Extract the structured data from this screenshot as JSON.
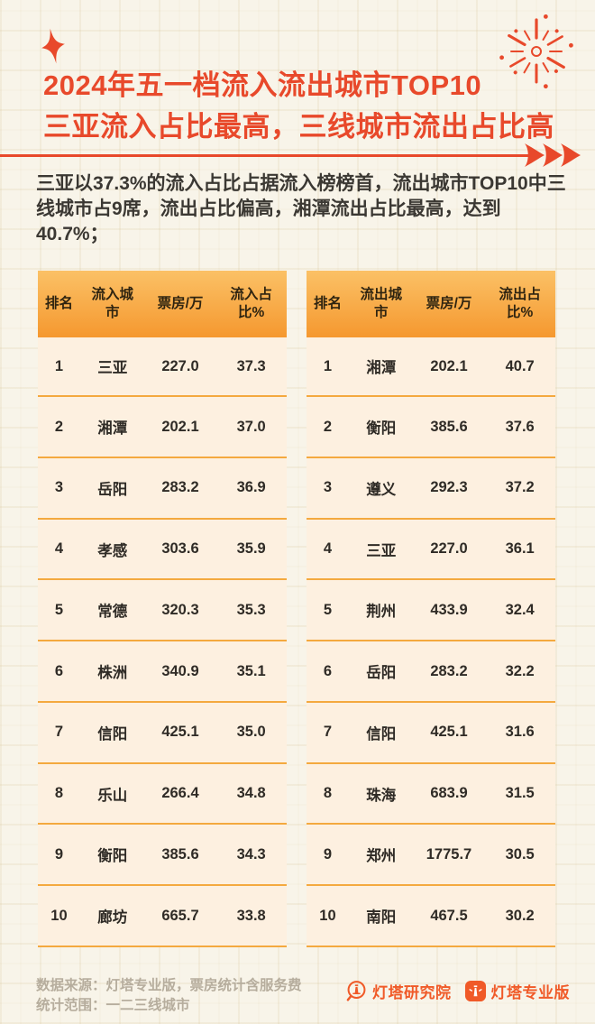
{
  "page": {
    "title_line1": "2024年五一档流入流出城市TOP10",
    "title_line2": "三亚流入占比最高，三线城市流出占比高",
    "summary": "三亚以37.3%的流入占比占据流入榜榜首，流出城市TOP10中三线城市占9席，流出占比偏高，湘潭流出占比最高，达到40.7%；"
  },
  "chart_data": [
    {
      "type": "table",
      "title": "流入城市TOP10",
      "columns": [
        "排名",
        "流入城市",
        "票房/万",
        "流入占比%"
      ],
      "rows": [
        [
          "1",
          "三亚",
          "227.0",
          "37.3"
        ],
        [
          "2",
          "湘潭",
          "202.1",
          "37.0"
        ],
        [
          "3",
          "岳阳",
          "283.2",
          "36.9"
        ],
        [
          "4",
          "孝感",
          "303.6",
          "35.9"
        ],
        [
          "5",
          "常德",
          "320.3",
          "35.3"
        ],
        [
          "6",
          "株洲",
          "340.9",
          "35.1"
        ],
        [
          "7",
          "信阳",
          "425.1",
          "35.0"
        ],
        [
          "8",
          "乐山",
          "266.4",
          "34.8"
        ],
        [
          "9",
          "衡阳",
          "385.6",
          "34.3"
        ],
        [
          "10",
          "廊坊",
          "665.7",
          "33.8"
        ]
      ]
    },
    {
      "type": "table",
      "title": "流出城市TOP10",
      "columns": [
        "排名",
        "流出城市",
        "票房/万",
        "流出占比%"
      ],
      "rows": [
        [
          "1",
          "湘潭",
          "202.1",
          "40.7"
        ],
        [
          "2",
          "衡阳",
          "385.6",
          "37.6"
        ],
        [
          "3",
          "遵义",
          "292.3",
          "37.2"
        ],
        [
          "4",
          "三亚",
          "227.0",
          "36.1"
        ],
        [
          "5",
          "荆州",
          "433.9",
          "32.4"
        ],
        [
          "6",
          "岳阳",
          "283.2",
          "32.2"
        ],
        [
          "7",
          "信阳",
          "425.1",
          "31.6"
        ],
        [
          "8",
          "珠海",
          "683.9",
          "31.5"
        ],
        [
          "9",
          "郑州",
          "1775.7",
          "30.5"
        ],
        [
          "10",
          "南阳",
          "467.5",
          "30.2"
        ]
      ]
    }
  ],
  "footer": {
    "source_line1": "数据来源：灯塔专业版，票房统计含服务费",
    "source_line2": "统计范围：一二三线城市",
    "logo1_label": "灯塔研究院",
    "logo2_label": "灯塔专业版"
  },
  "icons": {
    "sparkle": "four-point-star",
    "fireworks": "firework-burst",
    "arrows": "triple-forward-arrows",
    "logo1": "lighthouse-magnifier",
    "logo2": "lighthouse-app-tile"
  },
  "colors": {
    "accent": "#e8492b",
    "header_gradient_top": "#fbc166",
    "header_gradient_bottom": "#f5982f",
    "table_body_bg": "#fdf0e0",
    "row_divider": "#f4a93f",
    "page_bg": "#f8f4e9",
    "text_dark": "#3b3833",
    "footer_text": "#b6ad9d",
    "logo_orange": "#f05a28"
  }
}
